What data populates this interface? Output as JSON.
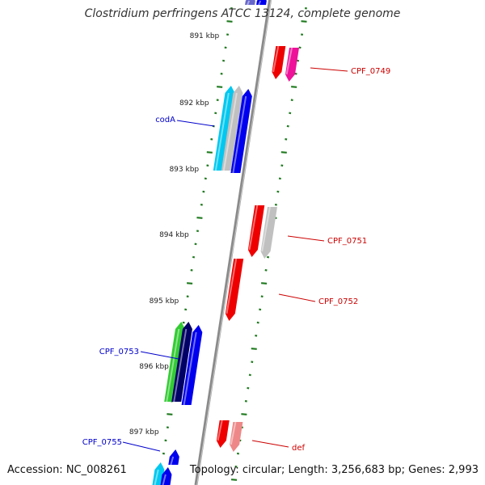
{
  "title": "Clostridium perfringens ATCC 13124, complete genome",
  "footer": {
    "accession": "Accession: NC_008261",
    "stats": "Topology: circular; Length: 3,256,683 bp; Genes: 2,993"
  },
  "colors": {
    "backbone": "#8a8a8a",
    "tick": "#1f7a1f",
    "forward_label": "#0000cc",
    "reverse_label": "#cc0000",
    "blue": "#0000ee",
    "navy": "#000066",
    "cyan": "#00c8f0",
    "gray": "#c0c0c0",
    "red": "#ee0000",
    "magenta": "#ee1199",
    "green": "#33cc33",
    "pink": "#ee8888",
    "violet": "#6666cc"
  },
  "kbp_labels": [
    "891 kbp",
    "892 kbp",
    "893 kbp",
    "894 kbp",
    "895 kbp",
    "896 kbp",
    "897 kbp"
  ],
  "gene_labels": [
    {
      "name": "CPF_0749",
      "strand": "reverse"
    },
    {
      "name": "codA",
      "strand": "forward"
    },
    {
      "name": "CPF_0751",
      "strand": "reverse"
    },
    {
      "name": "CPF_0752",
      "strand": "reverse"
    },
    {
      "name": "CPF_0753",
      "strand": "forward"
    },
    {
      "name": "CPF_0755",
      "strand": "forward"
    },
    {
      "name": "def",
      "strand": "reverse"
    }
  ]
}
